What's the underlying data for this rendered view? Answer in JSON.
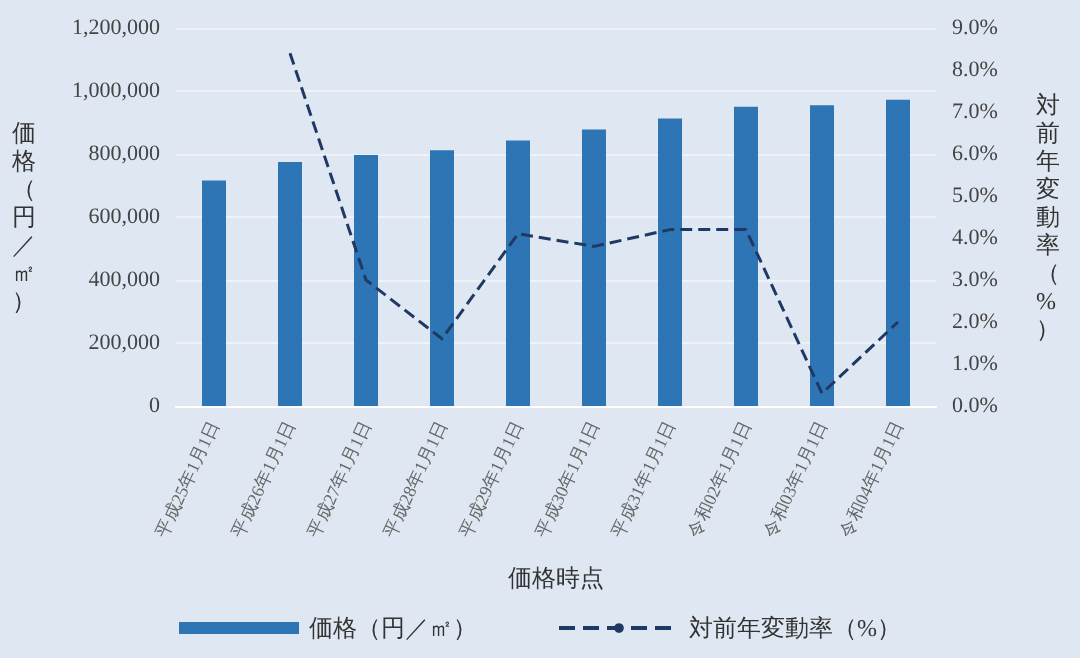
{
  "chart_data": {
    "type": "bar",
    "xlabel": "価格時点",
    "ylabel": "価格（円／㎡）",
    "y2label": "対前年変動率（%）",
    "categories": [
      "平成25年1月1日",
      "平成26年1月1日",
      "平成27年1月1日",
      "平成28年1月1日",
      "平成29年1月1日",
      "平成30年1月1日",
      "平成31年1月1日",
      "令和02年1月1日",
      "令和03年1月1日",
      "令和04年1月1日"
    ],
    "series": [
      {
        "name": "価格（円／㎡）",
        "color": "#2e75b6",
        "values": [
          716000,
          775000,
          797000,
          812000,
          843000,
          878000,
          913000,
          950000,
          955000,
          972000
        ]
      },
      {
        "name": "対前年変動率（%）",
        "type": "line",
        "axis": "y2",
        "color": "#203864",
        "line_style": "dashed",
        "marker": "none",
        "values": [
          null,
          8.4,
          3.0,
          1.6,
          4.1,
          3.8,
          4.2,
          4.2,
          0.3,
          2.0
        ]
      }
    ],
    "ylim": [
      0,
      1200000
    ],
    "yticks": [
      0,
      {
        "value": 200000,
        "label": "200,000"
      },
      {
        "value": 400000,
        "label": "400,000"
      },
      {
        "value": 600000,
        "label": "600,000"
      },
      {
        "value": 800000,
        "label": "800,000"
      },
      {
        "value": 1000000,
        "label": "1,000,000"
      },
      {
        "value": 1200000,
        "label": "1,200,000"
      }
    ],
    "y2lim": [
      0,
      9
    ],
    "y2ticks": [
      {
        "value": 0,
        "label": "0.0%"
      },
      {
        "value": 1,
        "label": "1.0%"
      },
      {
        "value": 2,
        "label": "2.0%"
      },
      {
        "value": 3,
        "label": "3.0%"
      },
      {
        "value": 4,
        "label": "4.0%"
      },
      {
        "value": 5,
        "label": "5.0%"
      },
      {
        "value": 6,
        "label": "6.0%"
      },
      {
        "value": 7,
        "label": "7.0%"
      },
      {
        "value": 8,
        "label": "8.0%"
      },
      {
        "value": 9,
        "label": "9.0%"
      }
    ],
    "grid": "y",
    "legend": "bottom"
  }
}
